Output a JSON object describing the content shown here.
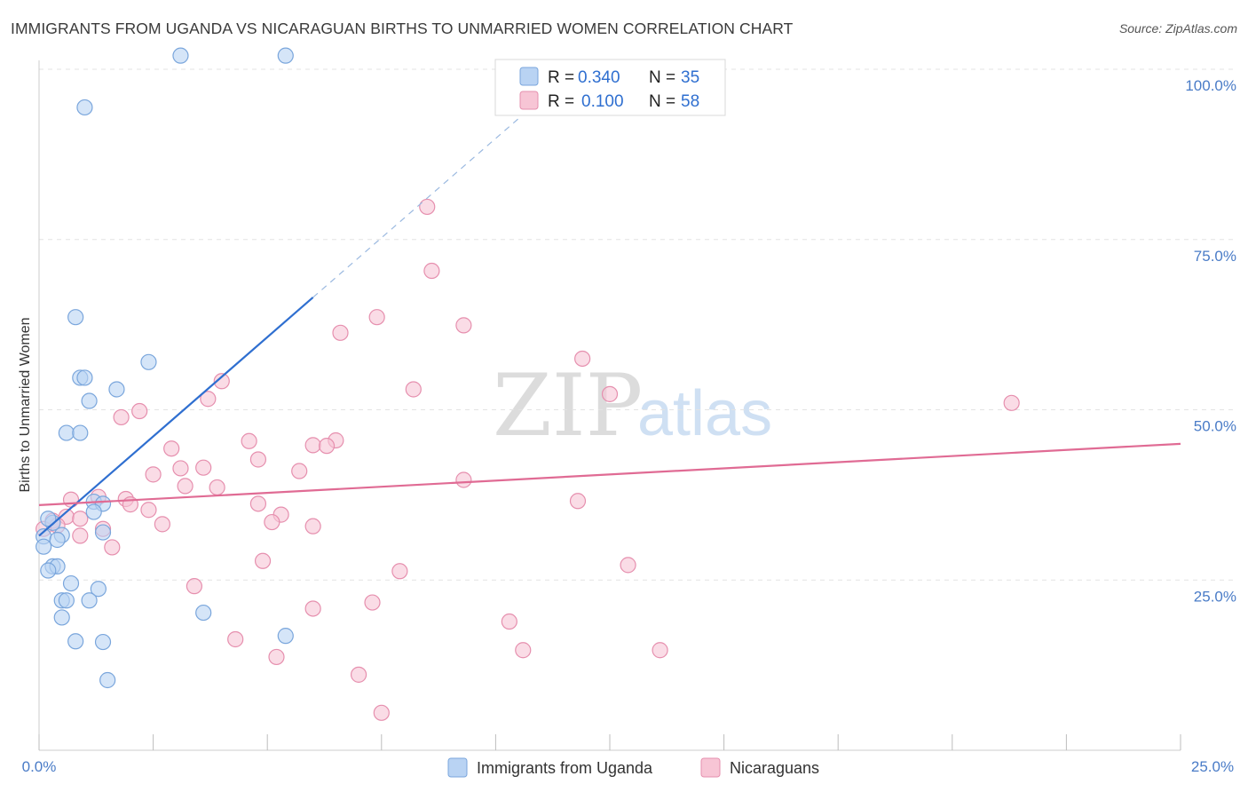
{
  "title": "IMMIGRANTS FROM UGANDA VS NICARAGUAN BIRTHS TO UNMARRIED WOMEN CORRELATION CHART",
  "source": "Source: ZipAtlas.com",
  "watermark": {
    "zip": "ZIP",
    "atlas": "atlas"
  },
  "colors": {
    "blue_fill": "#b9d3f3",
    "blue_stroke": "#7aa6dc",
    "blue_line": "#2f6fd0",
    "pink_fill": "#f7c5d5",
    "pink_stroke": "#e68fae",
    "pink_line": "#e06b94",
    "axis_text": "#4a7cc7"
  },
  "legend_stats": [
    {
      "r_label": "R =",
      "r_value": "0.340",
      "n_label": "N =",
      "n_value": "35"
    },
    {
      "r_label": "R =",
      "r_value": "0.100",
      "n_label": "N =",
      "n_value": "58"
    }
  ],
  "chart_data": {
    "type": "scatter",
    "title": "IMMIGRANTS FROM UGANDA VS NICARAGUAN BIRTHS TO UNMARRIED WOMEN CORRELATION CHART",
    "xlabel": "",
    "ylabel": "Births to Unmarried Women",
    "xlim": [
      0,
      25
    ],
    "ylim": [
      0,
      100
    ],
    "x_tick_labels": [
      "0.0%",
      "25.0%"
    ],
    "y_tick_labels": [
      "100.0%",
      "75.0%",
      "50.0%",
      "25.0%"
    ],
    "y_ticks": [
      100,
      75,
      50,
      25
    ],
    "legend_position": "bottom-center",
    "series": [
      {
        "name": "Immigrants from Uganda",
        "color": "blue",
        "trend": {
          "x0": 0,
          "y0": 31.5,
          "x1": 6.0,
          "y1": 66.5,
          "dashed_to_x": 10.5
        },
        "points": [
          [
            3.1,
            102
          ],
          [
            5.4,
            102
          ],
          [
            1.0,
            94.4
          ],
          [
            0.8,
            63.6
          ],
          [
            2.4,
            57.0
          ],
          [
            0.9,
            54.7
          ],
          [
            1.0,
            54.7
          ],
          [
            1.7,
            53.0
          ],
          [
            1.1,
            51.3
          ],
          [
            0.6,
            46.6
          ],
          [
            0.9,
            46.6
          ],
          [
            1.2,
            36.5
          ],
          [
            1.4,
            36.2
          ],
          [
            1.2,
            35.0
          ],
          [
            0.3,
            33.4
          ],
          [
            1.4,
            32.0
          ],
          [
            0.5,
            31.6
          ],
          [
            0.1,
            31.4
          ],
          [
            0.4,
            30.9
          ],
          [
            0.1,
            29.9
          ],
          [
            0.3,
            27.0
          ],
          [
            0.4,
            27.0
          ],
          [
            0.2,
            26.4
          ],
          [
            0.7,
            24.5
          ],
          [
            1.3,
            23.7
          ],
          [
            0.5,
            22.0
          ],
          [
            0.6,
            22.0
          ],
          [
            1.1,
            22.0
          ],
          [
            3.6,
            20.2
          ],
          [
            0.5,
            19.5
          ],
          [
            0.8,
            16.0
          ],
          [
            1.4,
            15.9
          ],
          [
            5.4,
            16.8
          ],
          [
            1.5,
            10.3
          ],
          [
            0.2,
            34.0
          ]
        ]
      },
      {
        "name": "Nicaraguans",
        "color": "pink",
        "trend": {
          "x0": 0,
          "y0": 36.0,
          "x1": 25,
          "y1": 45.0
        },
        "points": [
          [
            8.5,
            79.8
          ],
          [
            8.6,
            70.4
          ],
          [
            7.4,
            63.6
          ],
          [
            9.3,
            62.4
          ],
          [
            6.6,
            61.3
          ],
          [
            11.9,
            57.5
          ],
          [
            4.0,
            54.2
          ],
          [
            8.2,
            53.0
          ],
          [
            12.5,
            52.3
          ],
          [
            21.3,
            51.0
          ],
          [
            3.7,
            51.6
          ],
          [
            2.2,
            49.8
          ],
          [
            1.8,
            48.9
          ],
          [
            4.6,
            45.4
          ],
          [
            6.5,
            45.5
          ],
          [
            6.0,
            44.8
          ],
          [
            6.3,
            44.7
          ],
          [
            2.9,
            44.3
          ],
          [
            4.8,
            42.7
          ],
          [
            3.1,
            41.4
          ],
          [
            3.6,
            41.5
          ],
          [
            5.7,
            41.0
          ],
          [
            2.5,
            40.5
          ],
          [
            9.3,
            39.7
          ],
          [
            3.2,
            38.8
          ],
          [
            3.9,
            38.6
          ],
          [
            1.3,
            37.2
          ],
          [
            1.9,
            36.9
          ],
          [
            0.7,
            36.8
          ],
          [
            4.8,
            36.2
          ],
          [
            2.0,
            36.1
          ],
          [
            2.4,
            35.3
          ],
          [
            11.8,
            36.6
          ],
          [
            5.3,
            34.6
          ],
          [
            0.6,
            34.3
          ],
          [
            0.9,
            34.0
          ],
          [
            0.3,
            33.7
          ],
          [
            5.1,
            33.5
          ],
          [
            2.7,
            33.2
          ],
          [
            0.4,
            33.0
          ],
          [
            6.0,
            32.9
          ],
          [
            1.4,
            32.5
          ],
          [
            0.9,
            31.5
          ],
          [
            1.6,
            29.8
          ],
          [
            4.9,
            27.8
          ],
          [
            12.9,
            27.2
          ],
          [
            7.9,
            26.3
          ],
          [
            3.4,
            24.1
          ],
          [
            7.3,
            21.7
          ],
          [
            6.0,
            20.8
          ],
          [
            10.3,
            18.9
          ],
          [
            4.3,
            16.3
          ],
          [
            10.6,
            14.7
          ],
          [
            13.6,
            14.7
          ],
          [
            5.2,
            13.7
          ],
          [
            7.0,
            11.1
          ],
          [
            7.5,
            5.5
          ],
          [
            0.1,
            32.5
          ]
        ]
      }
    ]
  }
}
